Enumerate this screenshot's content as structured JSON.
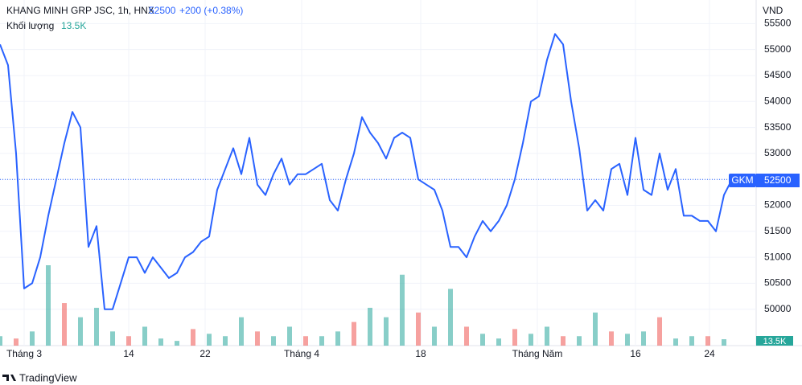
{
  "chart_data": {
    "type": "line",
    "title": "KHANG MINH GRP JSC, 1h, HNX",
    "last_price": 52500,
    "change": "+200 (+0.38%)",
    "currency": "VND",
    "symbol": "GKM",
    "brand": "TradingView",
    "x": [
      0,
      1,
      2,
      3,
      4,
      5,
      6,
      7,
      8,
      9,
      10,
      11,
      12,
      13,
      14,
      15,
      16,
      17,
      18,
      19,
      20,
      21,
      22,
      23,
      24,
      25,
      26,
      27,
      28,
      29,
      30,
      31,
      32,
      33,
      34,
      35,
      36,
      37,
      38,
      39,
      40,
      41,
      42,
      43,
      44,
      45,
      46,
      47,
      48,
      49,
      50,
      51,
      52,
      53,
      54,
      55,
      56,
      57,
      58,
      59,
      60,
      61,
      62,
      63,
      64,
      65,
      66,
      67,
      68,
      69,
      70,
      71,
      72,
      73,
      74,
      75,
      76,
      77,
      78,
      79,
      80,
      81,
      82,
      83,
      84,
      85,
      86,
      87,
      88,
      89,
      90,
      91
    ],
    "series": [
      {
        "name": "GKM",
        "color": "#2962ff",
        "values": [
          55100,
          54700,
          53000,
          50400,
          50500,
          51000,
          51800,
          52500,
          53200,
          53800,
          53500,
          51200,
          51600,
          50000,
          50000,
          50500,
          51000,
          51000,
          50700,
          51000,
          50800,
          50600,
          50700,
          51000,
          51100,
          51300,
          51400,
          52300,
          52700,
          53100,
          52600,
          53300,
          52400,
          52200,
          52600,
          52900,
          52400,
          52600,
          52600,
          52700,
          52800,
          52100,
          51900,
          52500,
          53000,
          53700,
          53400,
          53200,
          52900,
          53300,
          53400,
          53300,
          52500,
          52400,
          52300,
          51900,
          51200,
          51200,
          51000,
          51400,
          51700,
          51500,
          51700,
          52000,
          52500,
          53200,
          54000,
          54100,
          54800,
          55300,
          55100,
          54000,
          53100,
          51900,
          52100,
          51900,
          52700,
          52800,
          52200,
          53300,
          52300,
          52200,
          53000,
          52300,
          52700,
          51800,
          51800,
          51700,
          51700,
          51500,
          52200,
          52500
        ]
      }
    ],
    "volume": {
      "name": "Khối lượng",
      "last_label": "13.5K",
      "x": [
        0,
        2,
        4,
        6,
        8,
        10,
        12,
        14,
        16,
        18,
        20,
        22,
        24,
        26,
        28,
        30,
        32,
        34,
        36,
        38,
        40,
        42,
        44,
        46,
        48,
        50,
        52,
        54,
        56,
        58,
        60,
        62,
        64,
        66,
        68,
        70,
        72,
        74,
        76,
        78,
        80,
        82,
        84,
        86,
        88,
        90
      ],
      "values": [
        20,
        15,
        30,
        170,
        90,
        60,
        80,
        30,
        20,
        40,
        15,
        10,
        35,
        25,
        20,
        60,
        30,
        20,
        40,
        20,
        20,
        30,
        50,
        80,
        60,
        150,
        70,
        40,
        120,
        40,
        25,
        15,
        35,
        25,
        40,
        20,
        20,
        70,
        30,
        25,
        30,
        60,
        15,
        20,
        20,
        13.5
      ],
      "colors": [
        "#26a69a",
        "#ef5350",
        "#26a69a",
        "#26a69a",
        "#ef5350",
        "#26a69a",
        "#26a69a",
        "#26a69a",
        "#ef5350",
        "#26a69a",
        "#26a69a",
        "#26a69a",
        "#ef5350",
        "#26a69a",
        "#26a69a",
        "#26a69a",
        "#ef5350",
        "#26a69a",
        "#26a69a",
        "#ef5350",
        "#26a69a",
        "#26a69a",
        "#ef5350",
        "#26a69a",
        "#26a69a",
        "#26a69a",
        "#ef5350",
        "#26a69a",
        "#26a69a",
        "#ef5350",
        "#26a69a",
        "#26a69a",
        "#ef5350",
        "#26a69a",
        "#26a69a",
        "#ef5350",
        "#26a69a",
        "#26a69a",
        "#ef5350",
        "#26a69a",
        "#26a69a",
        "#ef5350",
        "#26a69a",
        "#26a69a",
        "#ef5350",
        "#26a69a"
      ]
    },
    "xlim": [
      0,
      94
    ],
    "xticks": [
      {
        "value": 3,
        "label": "Tháng 3"
      },
      {
        "value": 16,
        "label": "14"
      },
      {
        "value": 25.5,
        "label": "22"
      },
      {
        "value": 37.5,
        "label": "Tháng 4"
      },
      {
        "value": 52.3,
        "label": "18"
      },
      {
        "value": 66.8,
        "label": "Tháng Năm"
      },
      {
        "value": 79,
        "label": "16"
      },
      {
        "value": 88.2,
        "label": "24"
      }
    ],
    "ylim": [
      49500,
      55800
    ],
    "yticks": [
      50000,
      50500,
      51000,
      51500,
      52000,
      52500,
      53000,
      53500,
      54000,
      54500,
      55000,
      55500
    ],
    "grid": true
  }
}
